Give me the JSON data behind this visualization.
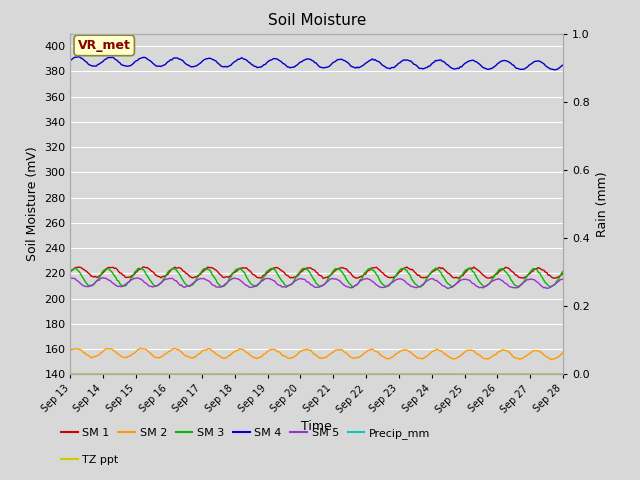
{
  "title": "Soil Moisture",
  "ylabel_left": "Soil Moisture (mV)",
  "ylabel_right": "Rain (mm)",
  "xlabel": "Time",
  "annotation": "VR_met",
  "ylim_left": [
    140,
    410
  ],
  "ylim_right": [
    0.0,
    1.0
  ],
  "yticks_left": [
    140,
    160,
    180,
    200,
    220,
    240,
    260,
    280,
    300,
    320,
    340,
    360,
    380,
    400
  ],
  "yticks_right": [
    0.0,
    0.2,
    0.4,
    0.6,
    0.8,
    1.0
  ],
  "xtick_labels": [
    "Sep 13",
    "Sep 14",
    "Sep 15",
    "Sep 16",
    "Sep 17",
    "Sep 18",
    "Sep 19",
    "Sep 20",
    "Sep 21",
    "Sep 22",
    "Sep 23",
    "Sep 24",
    "Sep 25",
    "Sep 26",
    "Sep 27",
    "Sep 28"
  ],
  "bg_color": "#d8d8d8",
  "grid_color": "#ffffff",
  "series_colors": {
    "SM1": "#cc0000",
    "SM2": "#ff9900",
    "SM3": "#00bb00",
    "SM4": "#0000cc",
    "SM5": "#9933cc",
    "Precip_mm": "#00cccc",
    "TZ_ppt": "#cccc00"
  },
  "legend_entries_row1": [
    {
      "label": "SM 1",
      "color": "#cc0000"
    },
    {
      "label": "SM 2",
      "color": "#ff9900"
    },
    {
      "label": "SM 3",
      "color": "#00bb00"
    },
    {
      "label": "SM 4",
      "color": "#0000cc"
    },
    {
      "label": "SM 5",
      "color": "#9933cc"
    },
    {
      "label": "Precip_mm",
      "color": "#00cccc"
    }
  ],
  "legend_entries_row2": [
    {
      "label": "TZ ppt",
      "color": "#cccc00"
    }
  ],
  "annotation_facecolor": "#ffffcc",
  "annotation_edgecolor": "#888833",
  "annotation_textcolor": "#880000"
}
